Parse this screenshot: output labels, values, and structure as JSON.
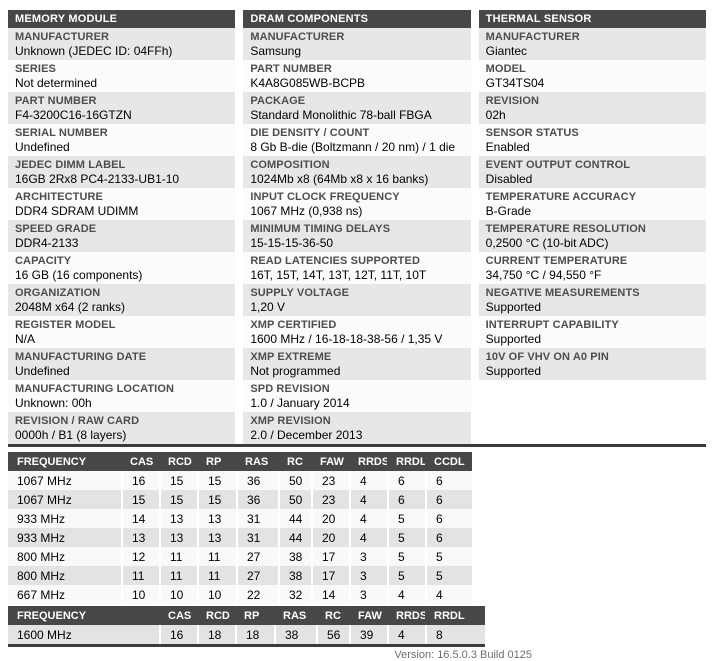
{
  "panels": [
    {
      "title": "MEMORY MODULE",
      "rows": [
        {
          "label": "MANUFACTURER",
          "value": "Unknown (JEDEC ID: 04FFh)"
        },
        {
          "label": "SERIES",
          "value": "Not determined"
        },
        {
          "label": "PART NUMBER",
          "value": "F4-3200C16-16GTZN"
        },
        {
          "label": "SERIAL NUMBER",
          "value": "Undefined"
        },
        {
          "label": "JEDEC DIMM LABEL",
          "value": "16GB 2Rx8 PC4-2133-UB1-10"
        },
        {
          "label": "ARCHITECTURE",
          "value": "DDR4 SDRAM UDIMM"
        },
        {
          "label": "SPEED GRADE",
          "value": "DDR4-2133"
        },
        {
          "label": "CAPACITY",
          "value": "16 GB (16 components)"
        },
        {
          "label": "ORGANIZATION",
          "value": "2048M x64 (2 ranks)"
        },
        {
          "label": "REGISTER MODEL",
          "value": "N/A"
        },
        {
          "label": "MANUFACTURING DATE",
          "value": "Undefined"
        },
        {
          "label": "MANUFACTURING LOCATION",
          "value": "Unknown: 00h"
        },
        {
          "label": "REVISION / RAW CARD",
          "value": "0000h / B1 (8 layers)"
        }
      ]
    },
    {
      "title": "DRAM COMPONENTS",
      "rows": [
        {
          "label": "MANUFACTURER",
          "value": "Samsung"
        },
        {
          "label": "PART NUMBER",
          "value": "K4A8G085WB-BCPB"
        },
        {
          "label": "PACKAGE",
          "value": "Standard Monolithic 78-ball FBGA"
        },
        {
          "label": "DIE DENSITY / COUNT",
          "value": "8 Gb B-die (Boltzmann / 20 nm) / 1 die"
        },
        {
          "label": "COMPOSITION",
          "value": "1024Mb x8 (64Mb x8 x 16 banks)"
        },
        {
          "label": "INPUT CLOCK FREQUENCY",
          "value": "1067 MHz (0,938 ns)"
        },
        {
          "label": "MINIMUM TIMING DELAYS",
          "value": "15-15-15-36-50"
        },
        {
          "label": "READ LATENCIES SUPPORTED",
          "value": "16T, 15T, 14T, 13T, 12T, 11T, 10T"
        },
        {
          "label": "SUPPLY VOLTAGE",
          "value": "1,20 V"
        },
        {
          "label": "XMP CERTIFIED",
          "value": "1600 MHz / 16-18-18-38-56 / 1,35 V"
        },
        {
          "label": "XMP EXTREME",
          "value": "Not programmed"
        },
        {
          "label": "SPD REVISION",
          "value": "1.0 / January 2014"
        },
        {
          "label": "XMP REVISION",
          "value": "2.0 / December 2013"
        }
      ]
    },
    {
      "title": "THERMAL SENSOR",
      "rows": [
        {
          "label": "MANUFACTURER",
          "value": "Giantec"
        },
        {
          "label": "MODEL",
          "value": "GT34TS04"
        },
        {
          "label": "REVISION",
          "value": "02h"
        },
        {
          "label": "SENSOR STATUS",
          "value": "Enabled"
        },
        {
          "label": "EVENT OUTPUT CONTROL",
          "value": "Disabled"
        },
        {
          "label": "TEMPERATURE ACCURACY",
          "value": "B-Grade"
        },
        {
          "label": "TEMPERATURE RESOLUTION",
          "value": "0,2500 °C (10-bit ADC)"
        },
        {
          "label": "CURRENT TEMPERATURE",
          "value": "34,750 °C / 94,550 °F"
        },
        {
          "label": "NEGATIVE MEASUREMENTS",
          "value": "Supported"
        },
        {
          "label": "INTERRUPT CAPABILITY",
          "value": "Supported"
        },
        {
          "label": "10V OF VHV ON A0 PIN",
          "value": "Supported"
        }
      ]
    }
  ],
  "chart_data": {
    "type": "table",
    "title": "DRAM timing parameters"
  },
  "jedec_table": {
    "headers": [
      "FREQUENCY",
      "CAS",
      "RCD",
      "RP",
      "RAS",
      "RC",
      "FAW",
      "RRDS",
      "RRDL",
      "CCDL"
    ],
    "rows": [
      [
        "1067 MHz",
        "16",
        "15",
        "15",
        "36",
        "50",
        "23",
        "4",
        "6",
        "6"
      ],
      [
        "1067 MHz",
        "15",
        "15",
        "15",
        "36",
        "50",
        "23",
        "4",
        "6",
        "6"
      ],
      [
        "933 MHz",
        "14",
        "13",
        "13",
        "31",
        "44",
        "20",
        "4",
        "5",
        "6"
      ],
      [
        "933 MHz",
        "13",
        "13",
        "13",
        "31",
        "44",
        "20",
        "4",
        "5",
        "6"
      ],
      [
        "800 MHz",
        "12",
        "11",
        "11",
        "27",
        "38",
        "17",
        "3",
        "5",
        "5"
      ],
      [
        "800 MHz",
        "11",
        "11",
        "11",
        "27",
        "38",
        "17",
        "3",
        "5",
        "5"
      ],
      [
        "667 MHz",
        "10",
        "10",
        "10",
        "22",
        "32",
        "14",
        "3",
        "4",
        "4"
      ]
    ]
  },
  "xmp_table": {
    "headers": [
      "FREQUENCY",
      "CAS",
      "RCD",
      "RP",
      "RAS",
      "RC",
      "FAW",
      "RRDS",
      "RRDL"
    ],
    "rows": [
      [
        "1600 MHz",
        "16",
        "18",
        "18",
        "38",
        "56",
        "39",
        "4",
        "8"
      ]
    ]
  },
  "footer": {
    "version": "Version: 16.5.0.3 Build 0125"
  },
  "colors": {
    "header_bar": "#474747",
    "row_gray": "#e7e7e7",
    "row_white": "#fbfbfb",
    "table_row_gray": "#e3e3e3",
    "table_row_white": "#f9f9f9",
    "divider": "#3c3c3c",
    "label_text": "#4d4d4d",
    "version_text": "#6e6e6e"
  }
}
